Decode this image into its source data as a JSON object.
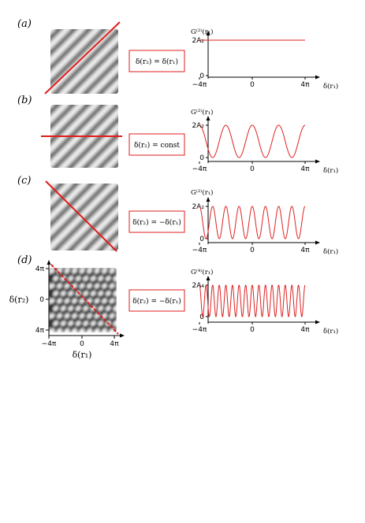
{
  "panels": [
    {
      "label": "(a)",
      "constraint": "δ(r₂) = δ(r₁)",
      "constraint_color": "#dd2222",
      "pattern": "diagonal-stripes",
      "cut_line": "diagonal-up",
      "chart_data": {
        "type": "line",
        "ylabel": "G⁽²⁾(r₁)",
        "xlabel": "δ(r₁)",
        "xticks": [
          "−4π",
          "0",
          "4π"
        ],
        "yticks": [
          "0",
          "2A₂"
        ],
        "xlim": [
          -12.566,
          12.566
        ],
        "ylim": [
          0,
          2
        ],
        "series": [
          {
            "function": "constant",
            "value": 2,
            "oscillations": 0
          }
        ],
        "line_color": "#dd2222"
      }
    },
    {
      "label": "(b)",
      "constraint": "δ(r₂) = const",
      "constraint_color": "#dd2222",
      "pattern": "diagonal-stripes",
      "cut_line": "horizontal",
      "chart_data": {
        "type": "line",
        "ylabel": "G⁽²⁾(r₁)",
        "xlabel": "δ(r₁)",
        "xticks": [
          "−4π",
          "0",
          "4π"
        ],
        "yticks": [
          "0",
          "2A₂"
        ],
        "xlim": [
          -12.566,
          12.566
        ],
        "ylim": [
          0,
          2
        ],
        "series": [
          {
            "function": "1+cos(x)",
            "value": 2,
            "oscillations": 4
          }
        ],
        "line_color": "#dd2222"
      }
    },
    {
      "label": "(c)",
      "constraint": "δ(r₂) = −δ(r₁)",
      "constraint_color": "#dd2222",
      "pattern": "diagonal-stripes",
      "cut_line": "diagonal-down",
      "chart_data": {
        "type": "line",
        "ylabel": "G⁽²⁾(r₁)",
        "xlabel": "δ(r₁)",
        "xticks": [
          "−4π",
          "0",
          "4π"
        ],
        "yticks": [
          "0",
          "2A₂"
        ],
        "xlim": [
          -12.566,
          12.566
        ],
        "ylim": [
          0,
          2
        ],
        "series": [
          {
            "function": "1+cos(2x)",
            "value": 2,
            "oscillations": 8
          }
        ],
        "line_color": "#dd2222"
      }
    },
    {
      "label": "(d)",
      "constraint": "δ(r₂) = −δ(r₁)",
      "constraint_color": "#dd2222",
      "pattern": "checker-grid",
      "cut_line": "diagonal-down",
      "image_axes": {
        "xlabel": "δ(r₁)",
        "ylabel": "δ(r₂)",
        "xticks": [
          "−4π",
          "0",
          "4π"
        ],
        "yticks": [
          "4π",
          "0",
          "4π"
        ]
      },
      "chart_data": {
        "type": "line",
        "ylabel": "G⁽⁴⁾(r₁)",
        "xlabel": "δ(r₁)",
        "xticks": [
          "−4π",
          "0",
          "4π"
        ],
        "yticks": [
          "0",
          "2A₄"
        ],
        "xlim": [
          -12.566,
          12.566
        ],
        "ylim": [
          0,
          2
        ],
        "series": [
          {
            "function": "1+cos(4x)",
            "value": 2,
            "oscillations": 16
          }
        ],
        "line_color": "#dd2222"
      }
    }
  ]
}
